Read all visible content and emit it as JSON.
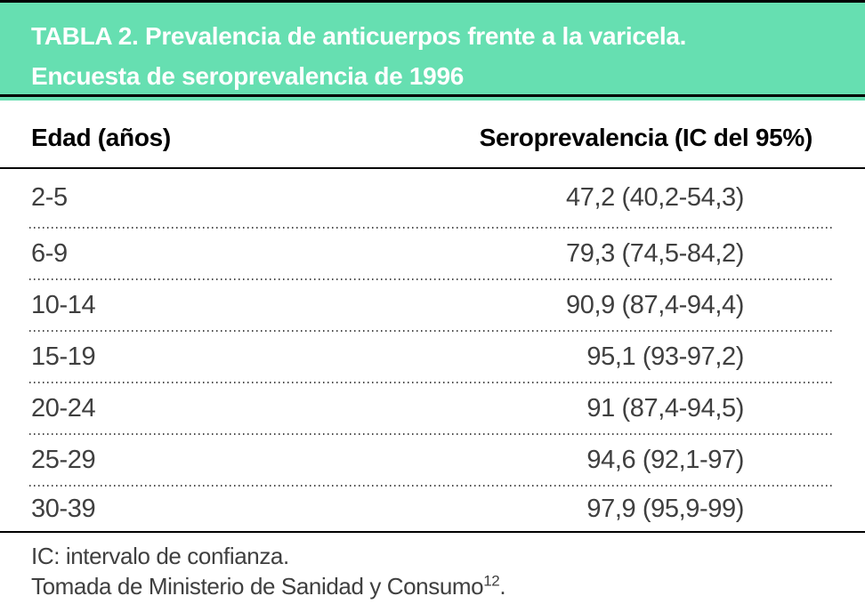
{
  "colors": {
    "header_bg": "#66dfb1",
    "rule": "#000000",
    "title_text": "#ffffff",
    "body_text": "#3f3f3f"
  },
  "header": {
    "title_line1": "TABLA 2. Prevalencia de anticuerpos frente a la varicela.",
    "title_line2": "Encuesta de seroprevalencia de 1996"
  },
  "columns": {
    "edad": "Edad (años)",
    "sero": "Seroprevalencia (IC del 95%)"
  },
  "rows": [
    {
      "edad": "2-5",
      "valor": "47,2 (40,2-54,3)"
    },
    {
      "edad": "6-9",
      "valor": "79,3 (74,5-84,2)"
    },
    {
      "edad": "10-14",
      "valor": "90,9 (87,4-94,4)"
    },
    {
      "edad": "15-19",
      "valor": "95,1 (93-97,2)"
    },
    {
      "edad": "20-24",
      "valor": "91 (87,4-94,5)"
    },
    {
      "edad": "25-29",
      "valor": "94,6 (92,1-97)"
    },
    {
      "edad": "30-39",
      "valor": "97,9 (95,9-99)"
    }
  ],
  "footnotes": {
    "line1": "IC: intervalo de confianza.",
    "line2_text": "Tomada de Ministerio de Sanidad y Consumo",
    "line2_sup": "12",
    "line2_end": "."
  },
  "chart_data": {
    "type": "table",
    "title": "TABLA 2. Prevalencia de anticuerpos frente a la varicela. Encuesta de seroprevalencia de 1996",
    "columns": [
      "Edad (años)",
      "Seroprevalencia (IC del 95%)"
    ],
    "rows": [
      [
        "2-5",
        "47,2 (40,2-54,3)"
      ],
      [
        "6-9",
        "79,3 (74,5-84,2)"
      ],
      [
        "10-14",
        "90,9 (87,4-94,4)"
      ],
      [
        "15-19",
        "95,1 (93-97,2)"
      ],
      [
        "20-24",
        "91 (87,4-94,5)"
      ],
      [
        "25-29",
        "94,6 (92,1-97)"
      ],
      [
        "30-39",
        "97,9 (95,9-99)"
      ]
    ],
    "footnotes": [
      "IC: intervalo de confianza.",
      "Tomada de Ministerio de Sanidad y Consumo12."
    ]
  }
}
